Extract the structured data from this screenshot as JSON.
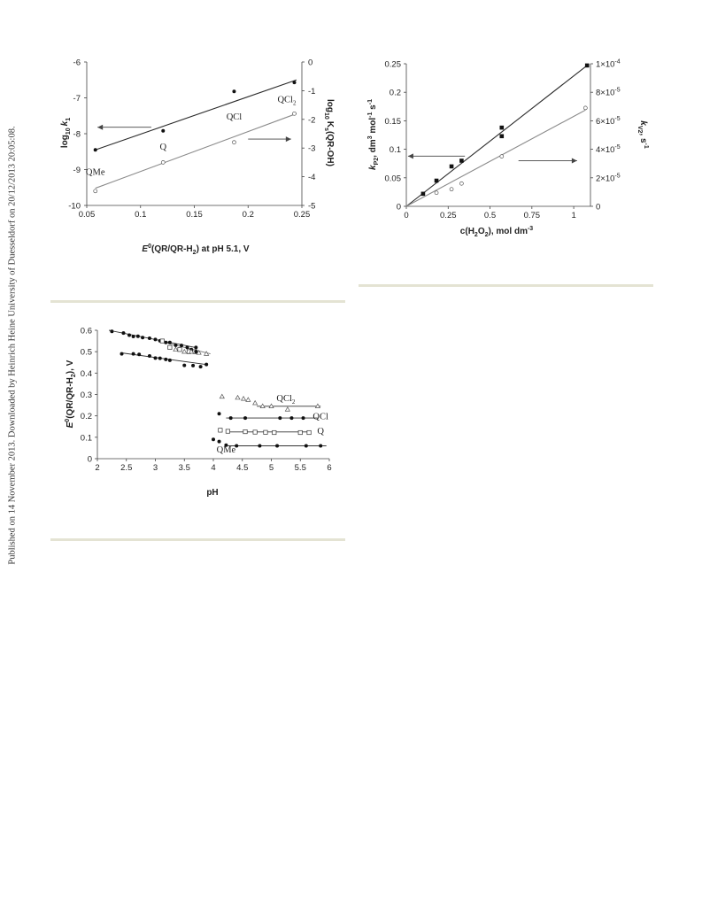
{
  "sidebar": {
    "publication_note": "Published on 14 November 2013. Downloaded by Heinrich Heine University of Duesseldorf on 20/12/2013 20:05:08."
  },
  "colors": {
    "dark": "#2a2a2a",
    "light": "#8a8a8a",
    "rule": "#e4e3d3"
  },
  "chart_data": [
    {
      "id": "chart1",
      "type": "scatter",
      "xlabel_main": "E",
      "xlabel_sup": "0",
      "xlabel_rest1": "(QR/QR-H",
      "xlabel_sub": "2",
      "xlabel_rest2": ") at pH 5.1, V",
      "ylabel_left_main": "log",
      "ylabel_left_sub": "10",
      "ylabel_left_var": "k",
      "ylabel_left_sub2": "1",
      "ylabel_right_main": "log",
      "ylabel_right_sub": "10",
      "ylabel_right_var": "K",
      "ylabel_right_sub2": "s",
      "ylabel_right_rest": "(QR-OH)",
      "xlim": [
        0.05,
        0.25
      ],
      "ylim_left": [
        -10,
        -6
      ],
      "ylim_right": [
        -5,
        0
      ],
      "x_ticks": [
        "0.05",
        "0.1",
        "0.15",
        "0.2",
        "0.25"
      ],
      "y_ticks_left": [
        "-6",
        "-7",
        "-8",
        "-9",
        "-10"
      ],
      "y_ticks_right": [
        "0",
        "-1",
        "-2",
        "-3",
        "-4",
        "-5"
      ],
      "series": [
        {
          "axis": "left",
          "marker": "filled",
          "x": [
            0.058,
            0.121,
            0.187,
            0.243
          ],
          "y": [
            -8.45,
            -7.92,
            -6.82,
            -6.57
          ],
          "fit": [
            [
              0.058,
              -8.45
            ],
            [
              0.245,
              -6.5
            ]
          ]
        },
        {
          "axis": "right",
          "marker": "open",
          "x": [
            0.058,
            0.121,
            0.187,
            0.243
          ],
          "y": [
            -4.5,
            -3.5,
            -2.8,
            -1.8
          ],
          "fit": [
            [
              0.058,
              -4.4
            ],
            [
              0.245,
              -1.8
            ]
          ]
        }
      ],
      "annotations": [
        {
          "text": "QMe",
          "x": 0.058,
          "y": -9.15
        },
        {
          "text": "Q",
          "x": 0.121,
          "y": -8.45
        },
        {
          "text": "QCl",
          "x": 0.187,
          "y": -7.6
        },
        {
          "text": "QCl",
          "sub": "2",
          "x": 0.236,
          "y": -7.12
        }
      ],
      "arrows": [
        {
          "from": [
            0.11,
            -7.82
          ],
          "to": [
            0.06,
            -7.82
          ]
        },
        {
          "from": [
            0.2,
            -8.15
          ],
          "to": [
            0.24,
            -8.15
          ]
        }
      ]
    },
    {
      "id": "chart2",
      "type": "scatter",
      "xlabel_main": "c(H",
      "xlabel_sub": "2",
      "xlabel_mid": "O",
      "xlabel_sub2": "2",
      "xlabel_rest": "), mol dm",
      "xlabel_sup": "-3",
      "ylabel_left_var": "k",
      "ylabel_left_sub": "P2",
      "ylabel_left_rest": ", dm",
      "ylabel_left_sup": "3",
      "ylabel_left_rest2": " mol",
      "ylabel_left_sup2": "-1",
      "ylabel_left_rest3": " s",
      "ylabel_left_sup3": "-1",
      "ylabel_right_var": "k",
      "ylabel_right_sub": "V2",
      "ylabel_right_rest": ", s",
      "ylabel_right_sup": "-1",
      "xlim": [
        0,
        1.1
      ],
      "ylim_left": [
        0,
        0.25
      ],
      "ylim_right": [
        0,
        0.0001
      ],
      "x_ticks": [
        "0",
        "0.25",
        "0.5",
        "0.75",
        "1"
      ],
      "y_ticks_left": [
        "0.25",
        "0.2",
        "0.15",
        "0.1",
        "0.05",
        "0"
      ],
      "y_ticks_right": [
        "1×10",
        "8×10",
        "6×10",
        "4×10",
        "2×10",
        "0"
      ],
      "y_ticks_right_exp": [
        "-4",
        "-5",
        "-5",
        "-5",
        "-5",
        ""
      ],
      "series": [
        {
          "axis": "left",
          "marker": "filled-square",
          "x": [
            0.1,
            0.18,
            0.27,
            0.33,
            0.57,
            0.57,
            1.08
          ],
          "y": [
            0.022,
            0.045,
            0.07,
            0.08,
            0.138,
            0.123,
            0.247
          ],
          "fit": [
            [
              0,
              0
            ],
            [
              1.08,
              0.247
            ]
          ]
        },
        {
          "axis": "right",
          "marker": "open",
          "x": [
            0.18,
            0.27,
            0.33,
            0.57,
            1.07
          ],
          "y": [
            9.5e-06,
            1.2e-05,
            1.6e-05,
            3.5e-05,
            6.9e-05
          ],
          "fit": [
            [
              0,
              0
            ],
            [
              1.07,
              6.75e-05
            ]
          ]
        }
      ],
      "arrows": [
        {
          "from": [
            0.35,
            0.088
          ],
          "to": [
            0.01,
            0.088
          ]
        },
        {
          "from": [
            0.67,
            3.2e-05
          ],
          "to": [
            1.02,
            3.2e-05
          ]
        }
      ]
    },
    {
      "id": "chart3",
      "type": "scatter",
      "xlabel": "pH",
      "ylabel_main": "E",
      "ylabel_sup": "0",
      "ylabel_rest": "(QR/QR-H",
      "ylabel_sub": "2",
      "ylabel_rest2": "), V",
      "xlim": [
        2,
        6
      ],
      "ylim": [
        0,
        0.6
      ],
      "x_ticks": [
        "2",
        "2.5",
        "3",
        "3.5",
        "4",
        "4.5",
        "5",
        "5.5",
        "6"
      ],
      "y_ticks": [
        "0.6",
        "0.5",
        "0.4",
        "0.3",
        "0.2",
        "0.1",
        "0"
      ],
      "series": [
        {
          "name": "QMe",
          "marker": "filled",
          "x": [
            2.25,
            2.45,
            2.55,
            2.62,
            2.7,
            2.78,
            2.9,
            3.0,
            3.08,
            3.18,
            3.25,
            3.35,
            3.45,
            3.55,
            3.62,
            3.7,
            2.42,
            2.62,
            2.72,
            2.9,
            3.0,
            3.08,
            3.18,
            3.25,
            3.5,
            3.65,
            3.78,
            3.88,
            4.0,
            4.1,
            4.22,
            4.4,
            4.8,
            5.1,
            5.6,
            5.85
          ],
          "y": [
            0.595,
            0.587,
            0.577,
            0.571,
            0.572,
            0.566,
            0.563,
            0.557,
            0.551,
            0.543,
            0.543,
            0.53,
            0.529,
            0.52,
            0.51,
            0.52,
            0.49,
            0.49,
            0.487,
            0.48,
            0.47,
            0.469,
            0.464,
            0.46,
            0.436,
            0.435,
            0.43,
            0.44,
            0.09,
            0.08,
            0.063,
            0.06,
            0.06,
            0.06,
            0.06,
            0.06
          ]
        },
        {
          "name": "Q",
          "marker": "open-square",
          "x": [
            3.12,
            3.25,
            3.42,
            3.58,
            3.68,
            4.12,
            4.25,
            4.55,
            4.72,
            4.9,
            5.05,
            5.5,
            5.65
          ],
          "y": [
            0.55,
            0.52,
            0.51,
            0.5,
            0.5,
            0.133,
            0.128,
            0.126,
            0.124,
            0.123,
            0.122,
            0.122,
            0.122
          ]
        },
        {
          "name": "QCl",
          "marker": "filled",
          "x": [
            3.7,
            4.1,
            4.3,
            4.55,
            5.15,
            5.35,
            5.55
          ],
          "y": [
            0.5,
            0.21,
            0.19,
            0.19,
            0.19,
            0.19,
            0.19
          ]
        },
        {
          "name": "QCl",
          "name_sub": "2",
          "marker": "open-triangle",
          "x": [
            3.35,
            3.5,
            3.62,
            3.75,
            3.88,
            4.15,
            4.42,
            4.52,
            4.6,
            4.72,
            4.85,
            5.0,
            5.28,
            5.8
          ],
          "y": [
            0.51,
            0.5,
            0.5,
            0.495,
            0.49,
            0.29,
            0.285,
            0.28,
            0.275,
            0.26,
            0.245,
            0.245,
            0.23,
            0.245
          ]
        }
      ],
      "lines": [
        [
          [
            2.2,
            0.6
          ],
          [
            3.68,
            0.52
          ]
        ],
        [
          [
            2.4,
            0.495
          ],
          [
            3.88,
            0.44
          ]
        ],
        [
          [
            3.05,
            0.55
          ],
          [
            3.95,
            0.49
          ]
        ],
        [
          [
            4.25,
            0.06
          ],
          [
            5.95,
            0.06
          ]
        ],
        [
          [
            4.22,
            0.125
          ],
          [
            5.65,
            0.125
          ]
        ],
        [
          [
            4.22,
            0.19
          ],
          [
            5.8,
            0.19
          ]
        ],
        [
          [
            4.75,
            0.245
          ],
          [
            5.85,
            0.245
          ]
        ]
      ],
      "annotations": [
        {
          "text": "QCl",
          "sub": "2",
          "x": 5.25,
          "y": 0.27
        },
        {
          "text": "QCl",
          "x": 5.85,
          "y": 0.185
        },
        {
          "text": "Q",
          "x": 5.85,
          "y": 0.115
        },
        {
          "text": "QMe",
          "x": 4.22,
          "y": 0.03
        }
      ]
    }
  ]
}
